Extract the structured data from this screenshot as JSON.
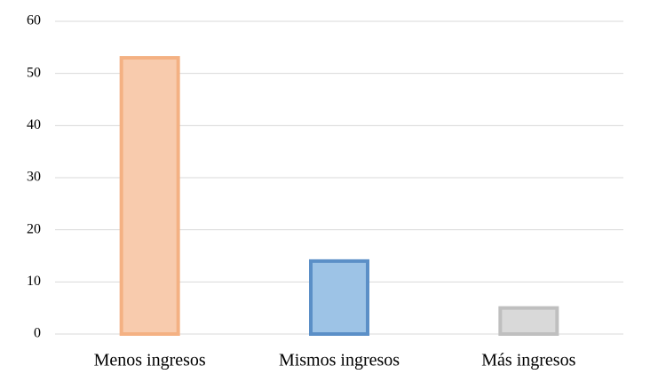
{
  "chart_data": {
    "type": "bar",
    "categories": [
      "Menos ingresos",
      "Mismos ingresos",
      "Más ingresos"
    ],
    "values": [
      53,
      14,
      5
    ],
    "colors": [
      "#f8cbad",
      "#9dc3e6",
      "#d9d9d9"
    ],
    "edgecolors": [
      "#f4b183",
      "#5b8fc7",
      "#bfbfbf"
    ],
    "ylim": [
      0,
      60
    ],
    "yticks": [
      0,
      10,
      20,
      30,
      40,
      50,
      60
    ],
    "grid": true
  }
}
